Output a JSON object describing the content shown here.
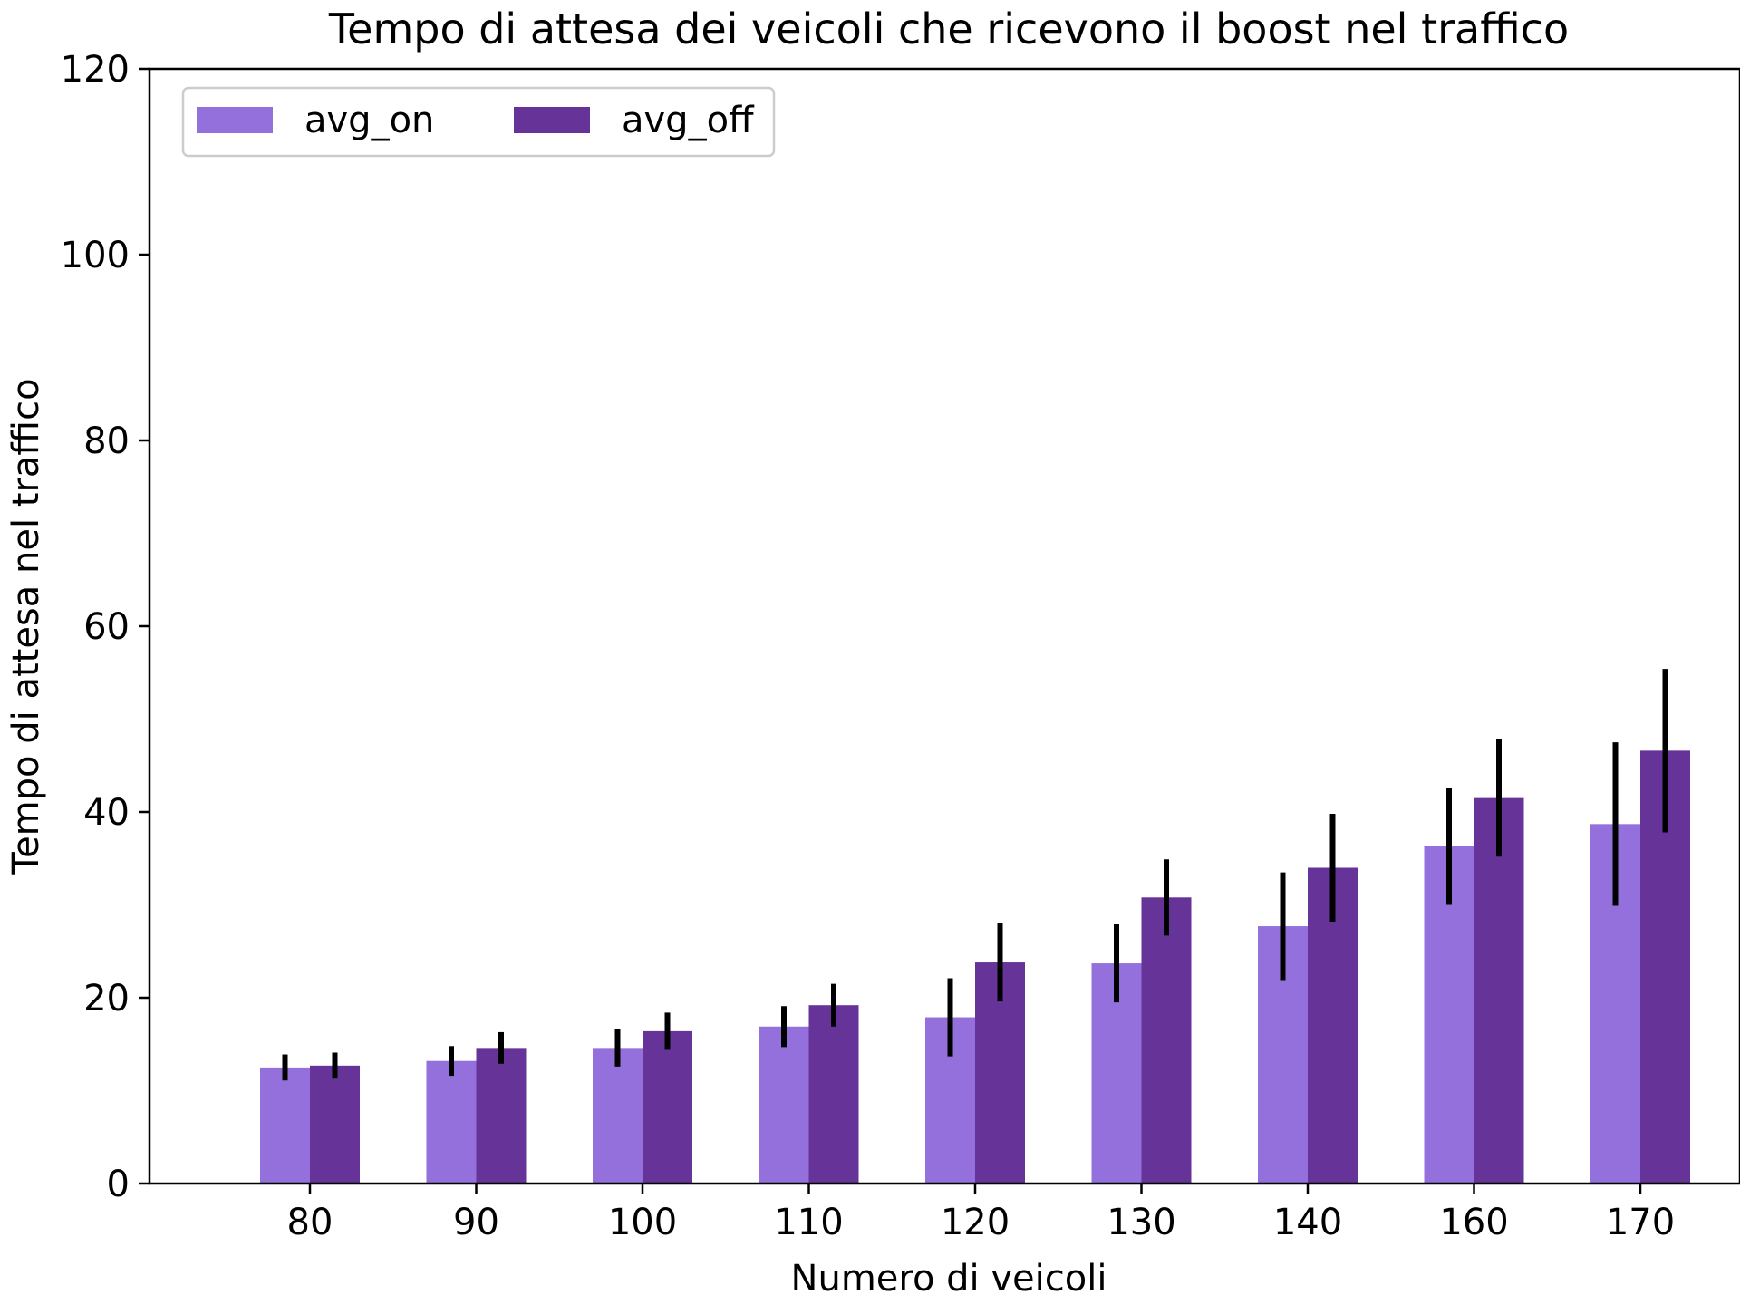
{
  "chart_data": {
    "type": "bar",
    "title": "Tempo di attesa dei veicoli che ricevono il boost nel traffico",
    "xlabel": "Numero di veicoli",
    "ylabel": "Tempo di attesa nel traffico",
    "categories": [
      "80",
      "90",
      "100",
      "110",
      "120",
      "130",
      "140",
      "160",
      "170"
    ],
    "ylim": [
      0,
      120
    ],
    "yticks": [
      0,
      20,
      40,
      60,
      80,
      100,
      120
    ],
    "grid": false,
    "legend_position": "top-left",
    "series": [
      {
        "name": "avg_on",
        "color": "#9370DB",
        "values": [
          12.5,
          13.2,
          14.6,
          16.9,
          17.9,
          23.7,
          27.7,
          36.3,
          38.7
        ],
        "error": [
          1.4,
          1.6,
          2.0,
          2.2,
          4.2,
          4.2,
          5.8,
          6.3,
          8.8
        ]
      },
      {
        "name": "avg_off",
        "color": "#663399",
        "values": [
          12.7,
          14.6,
          16.4,
          19.2,
          23.8,
          30.8,
          34.0,
          41.5,
          46.6
        ],
        "error": [
          1.4,
          1.7,
          2.0,
          2.3,
          4.2,
          4.1,
          5.8,
          6.3,
          8.8
        ]
      }
    ]
  }
}
